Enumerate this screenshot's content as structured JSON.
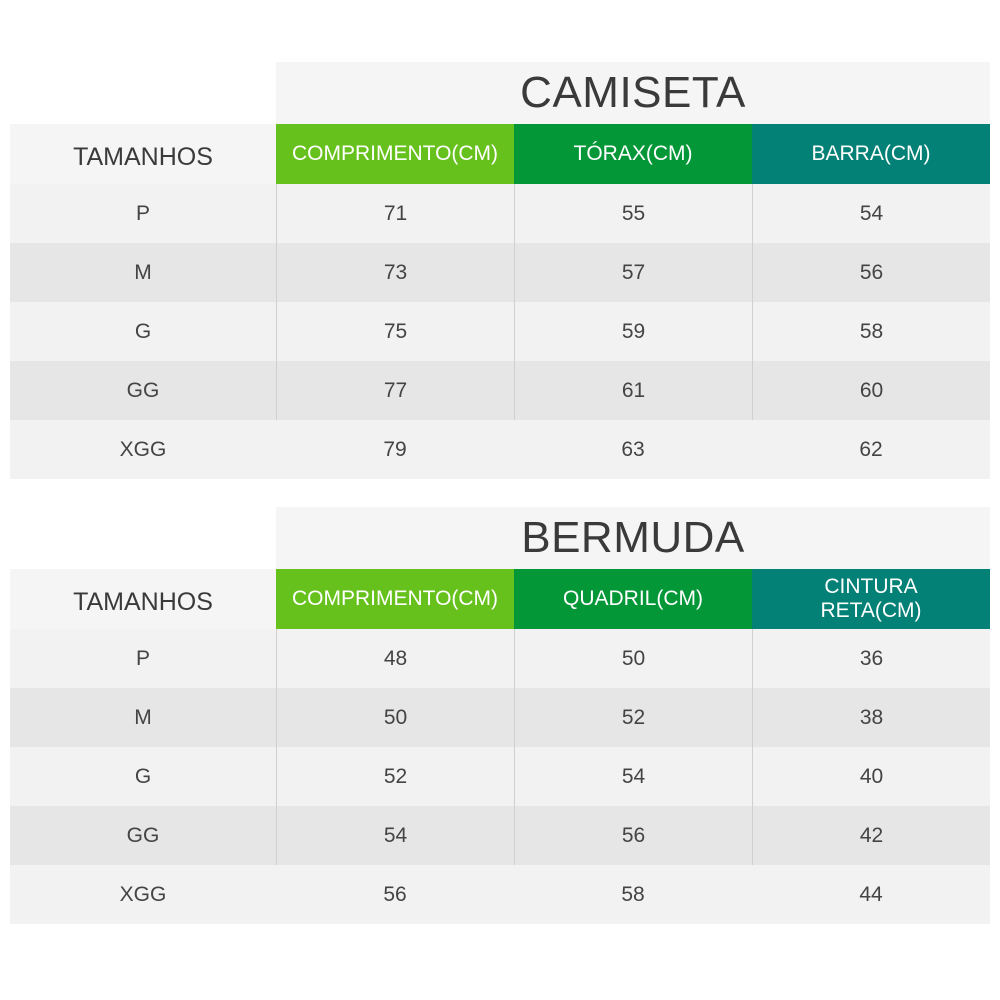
{
  "colors": {
    "green_light": "#66c11c",
    "green_mid": "#049738",
    "teal": "#038176"
  },
  "tables": [
    {
      "title": "CAMISETA",
      "size_header": "TAMANHOS",
      "col_headers": [
        "COMPRIMENTO(CM)",
        "TÓRAX(CM)",
        "BARRA(CM)"
      ],
      "rows": [
        {
          "size": "P",
          "values": [
            "71",
            "55",
            "54"
          ]
        },
        {
          "size": "M",
          "values": [
            "73",
            "57",
            "56"
          ]
        },
        {
          "size": "G",
          "values": [
            "75",
            "59",
            "58"
          ]
        },
        {
          "size": "GG",
          "values": [
            "77",
            "61",
            "60"
          ]
        },
        {
          "size": "XGG",
          "values": [
            "79",
            "63",
            "62"
          ]
        }
      ]
    },
    {
      "title": "BERMUDA",
      "size_header": "TAMANHOS",
      "col_headers": [
        "COMPRIMENTO(CM)",
        "QUADRIL(CM)",
        "CINTURA\nRETA(CM)"
      ],
      "rows": [
        {
          "size": "P",
          "values": [
            "48",
            "50",
            "36"
          ]
        },
        {
          "size": "M",
          "values": [
            "50",
            "52",
            "38"
          ]
        },
        {
          "size": "G",
          "values": [
            "52",
            "54",
            "40"
          ]
        },
        {
          "size": "GG",
          "values": [
            "54",
            "56",
            "42"
          ]
        },
        {
          "size": "XGG",
          "values": [
            "56",
            "58",
            "44"
          ]
        }
      ]
    }
  ]
}
